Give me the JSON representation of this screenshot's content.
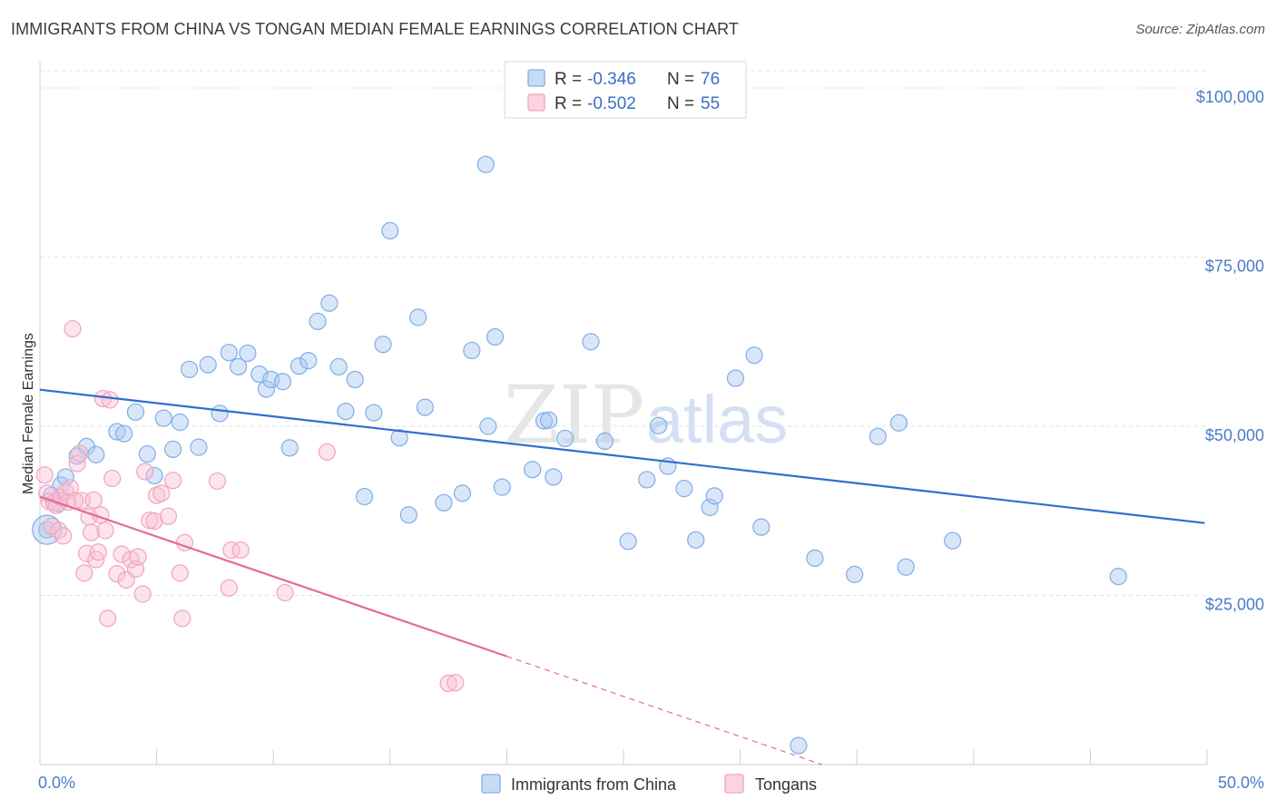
{
  "title": "IMMIGRANTS FROM CHINA VS TONGAN MEDIAN FEMALE EARNINGS CORRELATION CHART",
  "source": "Source: ZipAtlas.com",
  "watermark": {
    "zip": "ZIP",
    "atlas": "atlas"
  },
  "colors": {
    "blue": "#7eaee8",
    "blue_line": "#2f6fcf",
    "pink": "#f2a3bf",
    "pink_line": "#e26b97",
    "tick_text": "#4a7cc7"
  },
  "legend": {
    "entries": [
      {
        "r_label": "R = ",
        "r_value": "-0.346",
        "n_label": "N = ",
        "n_value": "76"
      },
      {
        "r_label": "R = ",
        "r_value": "-0.502",
        "n_label": "N = ",
        "n_value": "55"
      }
    ]
  },
  "chart_data": {
    "type": "scatter",
    "title": "IMMIGRANTS FROM CHINA VS TONGAN MEDIAN FEMALE EARNINGS CORRELATION CHART",
    "xlabel": "",
    "ylabel": "Median Female Earnings",
    "xlim": [
      0,
      50
    ],
    "ylim": [
      0,
      103000
    ],
    "x_tick_labels": [
      "0.0%",
      "50.0%"
    ],
    "y_ticks": [
      25000,
      50000,
      75000,
      100000
    ],
    "y_tick_labels": [
      "$25,000",
      "$50,000",
      "$75,000",
      "$100,000"
    ],
    "grid": true,
    "legend_position": "top-center",
    "series": [
      {
        "name": "Immigrants from China",
        "color": "#7eaee8",
        "trend": {
          "x": [
            0,
            49.9
          ],
          "y": [
            55400,
            35700
          ]
        },
        "points": [
          [
            0.3,
            34700
          ],
          [
            0.5,
            39800
          ],
          [
            0.9,
            41300
          ],
          [
            1.1,
            42500
          ],
          [
            1.6,
            45600
          ],
          [
            2.0,
            47000
          ],
          [
            2.4,
            45800
          ],
          [
            3.3,
            49200
          ],
          [
            3.6,
            48900
          ],
          [
            4.1,
            52100
          ],
          [
            4.6,
            45900
          ],
          [
            4.9,
            42700
          ],
          [
            5.3,
            51200
          ],
          [
            5.7,
            46600
          ],
          [
            6.0,
            50600
          ],
          [
            6.4,
            58400
          ],
          [
            6.8,
            46900
          ],
          [
            7.2,
            59100
          ],
          [
            7.7,
            51900
          ],
          [
            8.1,
            60900
          ],
          [
            8.5,
            58800
          ],
          [
            8.9,
            60800
          ],
          [
            9.4,
            57700
          ],
          [
            9.7,
            55500
          ],
          [
            9.9,
            56900
          ],
          [
            10.4,
            56600
          ],
          [
            10.7,
            46800
          ],
          [
            11.1,
            58900
          ],
          [
            11.5,
            59700
          ],
          [
            11.9,
            65500
          ],
          [
            12.4,
            68200
          ],
          [
            12.8,
            58800
          ],
          [
            13.1,
            52200
          ],
          [
            13.5,
            56900
          ],
          [
            13.9,
            39600
          ],
          [
            14.3,
            52000
          ],
          [
            14.7,
            62100
          ],
          [
            15.0,
            78900
          ],
          [
            15.4,
            48300
          ],
          [
            15.8,
            36900
          ],
          [
            16.2,
            66100
          ],
          [
            16.5,
            52800
          ],
          [
            17.3,
            38700
          ],
          [
            18.1,
            40100
          ],
          [
            18.5,
            61200
          ],
          [
            19.1,
            88700
          ],
          [
            19.2,
            50000
          ],
          [
            19.5,
            63200
          ],
          [
            19.8,
            41000
          ],
          [
            21.1,
            43600
          ],
          [
            21.6,
            50800
          ],
          [
            21.8,
            50900
          ],
          [
            22.0,
            42500
          ],
          [
            22.5,
            48200
          ],
          [
            23.6,
            62500
          ],
          [
            24.2,
            47800
          ],
          [
            25.2,
            33000
          ],
          [
            26.0,
            42100
          ],
          [
            26.5,
            50100
          ],
          [
            26.9,
            44100
          ],
          [
            27.6,
            40800
          ],
          [
            28.1,
            33200
          ],
          [
            28.7,
            38000
          ],
          [
            28.9,
            39700
          ],
          [
            29.8,
            57100
          ],
          [
            30.6,
            60500
          ],
          [
            30.9,
            35100
          ],
          [
            32.5,
            2800
          ],
          [
            33.2,
            30500
          ],
          [
            34.9,
            28100
          ],
          [
            35.9,
            48500
          ],
          [
            36.8,
            50500
          ],
          [
            37.1,
            29200
          ],
          [
            39.1,
            33100
          ],
          [
            46.2,
            27800
          ],
          [
            0.8,
            38600
          ]
        ]
      },
      {
        "name": "Tongans",
        "color": "#f2a3bf",
        "trend": {
          "x": [
            0,
            20
          ],
          "y": [
            39600,
            16000
          ]
        },
        "trend_dashed": {
          "x": [
            20,
            33.5
          ],
          "y": [
            16000,
            0
          ]
        },
        "points": [
          [
            0.2,
            42800
          ],
          [
            0.3,
            40100
          ],
          [
            0.4,
            38900
          ],
          [
            0.5,
            35200
          ],
          [
            0.6,
            38700
          ],
          [
            0.7,
            38300
          ],
          [
            0.8,
            34600
          ],
          [
            0.9,
            39500
          ],
          [
            1.0,
            33800
          ],
          [
            1.1,
            40300
          ],
          [
            1.2,
            38800
          ],
          [
            1.3,
            40900
          ],
          [
            1.4,
            64400
          ],
          [
            1.6,
            44500
          ],
          [
            1.7,
            46000
          ],
          [
            1.8,
            39000
          ],
          [
            1.9,
            28300
          ],
          [
            2.0,
            31200
          ],
          [
            2.1,
            36600
          ],
          [
            2.2,
            34300
          ],
          [
            2.4,
            30300
          ],
          [
            2.5,
            31400
          ],
          [
            2.6,
            36900
          ],
          [
            2.7,
            54100
          ],
          [
            2.8,
            34600
          ],
          [
            2.9,
            21600
          ],
          [
            3.0,
            53900
          ],
          [
            3.1,
            42300
          ],
          [
            3.3,
            28200
          ],
          [
            3.5,
            31100
          ],
          [
            3.7,
            27300
          ],
          [
            3.9,
            30300
          ],
          [
            4.1,
            28900
          ],
          [
            4.2,
            30700
          ],
          [
            4.4,
            25200
          ],
          [
            4.5,
            43300
          ],
          [
            4.7,
            36100
          ],
          [
            4.9,
            36000
          ],
          [
            5.0,
            39800
          ],
          [
            5.2,
            40100
          ],
          [
            5.5,
            36700
          ],
          [
            5.7,
            42000
          ],
          [
            6.0,
            28300
          ],
          [
            6.1,
            21600
          ],
          [
            6.2,
            32800
          ],
          [
            7.6,
            41900
          ],
          [
            8.1,
            26100
          ],
          [
            8.2,
            31700
          ],
          [
            8.6,
            31700
          ],
          [
            10.5,
            25400
          ],
          [
            12.3,
            46200
          ],
          [
            17.5,
            12000
          ],
          [
            17.8,
            12100
          ],
          [
            1.5,
            39000
          ],
          [
            2.3,
            39100
          ]
        ]
      }
    ]
  }
}
